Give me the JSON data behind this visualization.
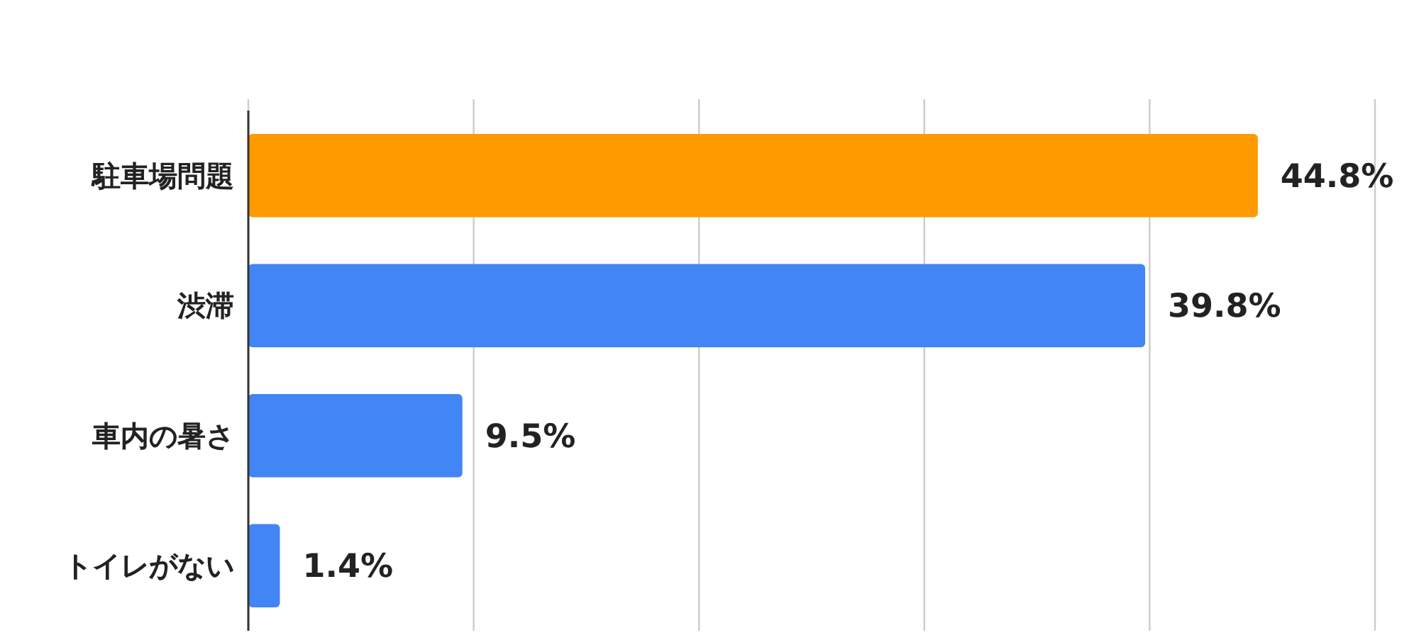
{
  "chart_data": {
    "type": "bar",
    "orientation": "horizontal",
    "categories": [
      "駐車場問題",
      "渋滞",
      "車内の暑さ",
      "トイレがない"
    ],
    "values": [
      44.8,
      39.8,
      9.5,
      1.4
    ],
    "colors": [
      "#ff9900",
      "#4285f4",
      "#4285f4",
      "#4285f4"
    ],
    "value_labels": [
      "44.8%",
      "39.8%",
      "9.5%",
      "1.4%"
    ],
    "xlim": [
      0,
      50
    ],
    "xticks": [
      {
        "value": 0,
        "label": null
      },
      {
        "value": 10,
        "label": null
      },
      {
        "value": 20,
        "label": null
      },
      {
        "value": 30,
        "label": null
      },
      {
        "value": 40,
        "label": null
      },
      {
        "value": 50,
        "label": null
      }
    ],
    "grid": "x"
  }
}
